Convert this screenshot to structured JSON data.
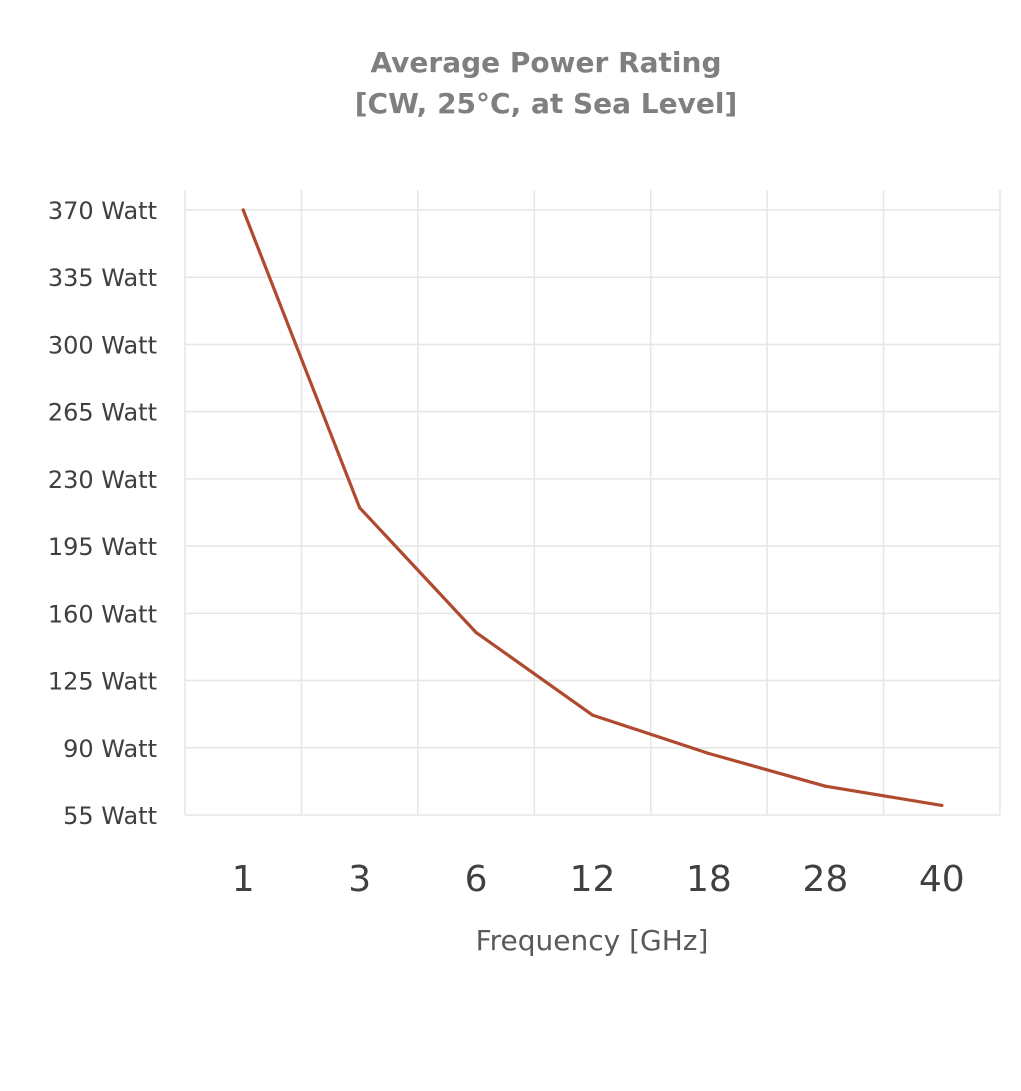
{
  "chart_data": {
    "type": "line",
    "title": "Average Power Rating",
    "subtitle": "[CW, 25°C, at Sea Level]",
    "xlabel": "Frequency [GHz]",
    "ylabel": "",
    "categories": [
      "1",
      "3",
      "6",
      "12",
      "18",
      "28",
      "40"
    ],
    "series": [
      {
        "values": [
          370,
          215,
          150,
          107,
          87,
          70,
          60
        ]
      }
    ],
    "ylim": [
      55,
      370
    ],
    "y_ticks": [
      55,
      90,
      125,
      160,
      195,
      230,
      265,
      300,
      335,
      370
    ],
    "y_tick_labels": [
      "55 Watt",
      "90 Watt",
      "125 Watt",
      "160 Watt",
      "195 Watt",
      "230 Watt",
      "265 Watt",
      "300 Watt",
      "335 Watt",
      "370 Watt"
    ],
    "grid": true,
    "legend": "none",
    "line_color": "#b04a2f"
  }
}
